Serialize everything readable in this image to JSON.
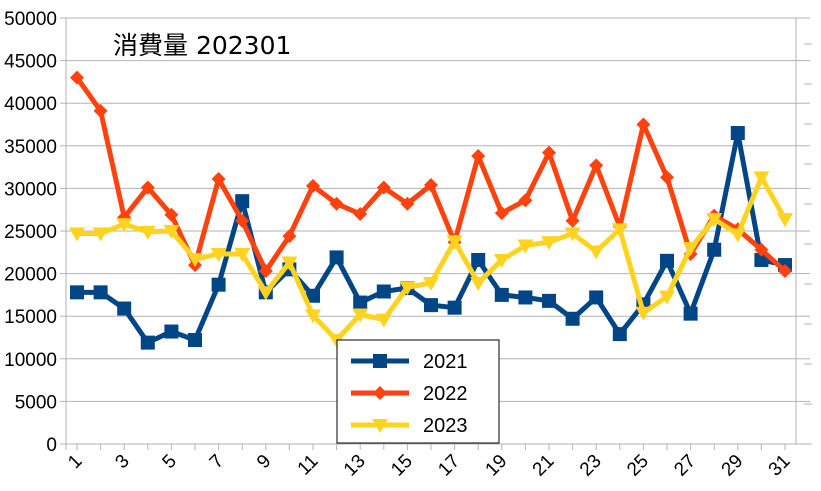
{
  "chart_data": {
    "type": "line",
    "title": "消費量 202301",
    "xlabel": "",
    "ylabel": "",
    "x": [
      1,
      2,
      3,
      4,
      5,
      6,
      7,
      8,
      9,
      10,
      11,
      12,
      13,
      14,
      15,
      16,
      17,
      18,
      19,
      20,
      21,
      22,
      23,
      24,
      25,
      26,
      27,
      28,
      29,
      30,
      31
    ],
    "xtick_labels": [
      "1",
      "3",
      "5",
      "7",
      "9",
      "11",
      "13",
      "15",
      "17",
      "19",
      "21",
      "23",
      "25",
      "27",
      "29",
      "31"
    ],
    "ylim": [
      0,
      50000
    ],
    "yticks": [
      0,
      5000,
      10000,
      15000,
      20000,
      25000,
      30000,
      35000,
      40000,
      45000,
      50000
    ],
    "grid": "horizontal",
    "legend_position": "bottom-center",
    "series": [
      {
        "name": "2021",
        "color": "#004586",
        "marker": "square",
        "values": [
          17800,
          17800,
          15900,
          11900,
          13200,
          12200,
          18700,
          28500,
          17800,
          20500,
          17400,
          21900,
          16600,
          17900,
          18300,
          16300,
          16000,
          21600,
          17500,
          17200,
          16800,
          14700,
          17200,
          12900,
          16400,
          21500,
          15300,
          22800,
          36500,
          21600,
          21000
        ]
      },
      {
        "name": "2022",
        "color": "#ff420e",
        "marker": "diamond",
        "values": [
          43000,
          39100,
          26600,
          30100,
          26900,
          21000,
          31100,
          26200,
          20300,
          24400,
          30300,
          28200,
          27000,
          30100,
          28200,
          30400,
          23700,
          33800,
          27100,
          28600,
          34200,
          26200,
          32700,
          25500,
          37500,
          31300,
          22300,
          26800,
          25200,
          22800,
          20300
        ]
      },
      {
        "name": "2023",
        "color": "#ffd320",
        "marker": "triangle-down",
        "values": [
          24700,
          24700,
          25800,
          24900,
          25000,
          21700,
          22300,
          22300,
          17800,
          21300,
          15100,
          12200,
          15200,
          14600,
          18400,
          18900,
          23800,
          18900,
          21600,
          23300,
          23700,
          24700,
          22600,
          25200,
          15400,
          17300,
          23000,
          26400,
          24600,
          31300,
          26400
        ]
      }
    ]
  }
}
